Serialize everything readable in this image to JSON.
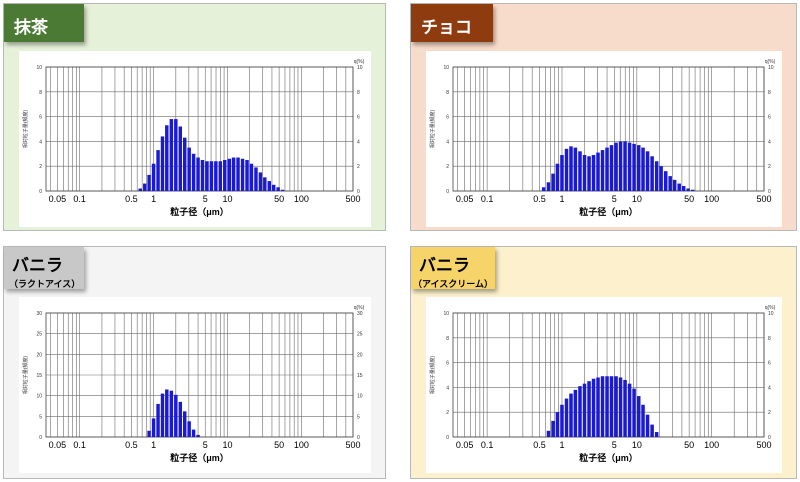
{
  "panels": [
    {
      "id": "matcha",
      "title": "抹茶",
      "subtitle": "",
      "bg": "#e6f1d9",
      "tab_color": "#4b7a34",
      "tab_text": "#ffffff"
    },
    {
      "id": "choco",
      "title": "チョコ",
      "subtitle": "",
      "bg": "#f8dccb",
      "tab_color": "#8e3b10",
      "tab_text": "#ffffff"
    },
    {
      "id": "vanilla-lacto",
      "title": "バニラ",
      "subtitle": "（ラクトアイス）",
      "bg": "#f4f4f4",
      "tab_color": "#c8c8c8",
      "tab_text": "#000000"
    },
    {
      "id": "vanilla-ice",
      "title": "バニラ",
      "subtitle": "（アイスクリーム）",
      "bg": "#fcf1cc",
      "tab_color": "#f7d469",
      "tab_text": "#000000"
    }
  ],
  "axis": {
    "x_ticks": [
      "0.05",
      "0.1",
      "0.5",
      "1",
      "5",
      "10",
      "50",
      "100",
      "500"
    ],
    "x_label": "粒子径（μm）",
    "y_label": "相対粒子量(頻度)",
    "y_label_right": "q(%)"
  },
  "bar_color": "#1a1ad2",
  "chart_data": [
    {
      "type": "bar",
      "title": "抹茶",
      "xlabel": "粒子径（μm）",
      "ylabel": "相対粒子量(頻度)",
      "x_scale": "log",
      "xlim": [
        0.035,
        500
      ],
      "ylim": [
        0,
        10
      ],
      "y_ticks": [
        0,
        2,
        4,
        6,
        8,
        10
      ],
      "grid": true,
      "x": [
        0.66,
        0.76,
        0.87,
        1.0,
        1.15,
        1.32,
        1.51,
        1.74,
        2.0,
        2.3,
        2.64,
        3.03,
        3.48,
        4.0,
        4.59,
        5.28,
        6.06,
        6.96,
        8.0,
        9.19,
        10.6,
        12.1,
        13.9,
        16.0,
        18.4,
        21.1,
        24.3,
        27.9,
        32.0,
        36.8,
        42.2,
        48.5,
        55.7
      ],
      "values": [
        0.2,
        0.6,
        1.3,
        2.2,
        3.3,
        4.4,
        5.3,
        5.8,
        5.8,
        5.2,
        4.3,
        3.5,
        3.0,
        2.7,
        2.5,
        2.4,
        2.4,
        2.4,
        2.4,
        2.5,
        2.6,
        2.7,
        2.7,
        2.6,
        2.5,
        2.2,
        1.9,
        1.5,
        1.1,
        0.8,
        0.5,
        0.3,
        0.1
      ]
    },
    {
      "type": "bar",
      "title": "チョコ",
      "xlabel": "粒子径（μm）",
      "ylabel": "相対粒子量(頻度)",
      "x_scale": "log",
      "xlim": [
        0.035,
        500
      ],
      "ylim": [
        0,
        10
      ],
      "y_ticks": [
        0,
        2,
        4,
        6,
        8,
        10
      ],
      "grid": true,
      "x": [
        0.57,
        0.66,
        0.76,
        0.87,
        1.0,
        1.15,
        1.32,
        1.51,
        1.74,
        2.0,
        2.3,
        2.64,
        3.03,
        3.48,
        4.0,
        4.59,
        5.28,
        6.06,
        6.96,
        8.0,
        9.19,
        10.6,
        12.1,
        13.9,
        16.0,
        18.4,
        21.1,
        24.3,
        27.9,
        32.0,
        36.8,
        42.2,
        48.5,
        55.7
      ],
      "values": [
        0.3,
        0.7,
        1.4,
        2.2,
        2.9,
        3.4,
        3.6,
        3.5,
        3.2,
        2.9,
        2.8,
        2.9,
        3.1,
        3.3,
        3.5,
        3.7,
        3.9,
        4.0,
        4.0,
        3.9,
        3.8,
        3.7,
        3.5,
        3.2,
        2.8,
        2.4,
        2.0,
        1.6,
        1.2,
        0.9,
        0.6,
        0.4,
        0.2,
        0.1
      ]
    },
    {
      "type": "bar",
      "title": "バニラ（ラクトアイス）",
      "xlabel": "粒子径（μm）",
      "ylabel": "相対粒子量(頻度)",
      "x_scale": "log",
      "xlim": [
        0.035,
        500
      ],
      "ylim": [
        0,
        30
      ],
      "y_ticks": [
        0,
        5,
        10,
        15,
        20,
        25,
        30
      ],
      "grid": true,
      "x": [
        0.87,
        1.0,
        1.15,
        1.32,
        1.51,
        1.74,
        2.0,
        2.3,
        2.64,
        3.03,
        3.48,
        4.0
      ],
      "values": [
        1.5,
        4.5,
        8.0,
        10.5,
        11.5,
        11.2,
        10.2,
        8.5,
        6.2,
        3.8,
        1.8,
        0.5
      ]
    },
    {
      "type": "bar",
      "title": "バニラ（アイスクリーム）",
      "xlabel": "粒子径（μm）",
      "ylabel": "相対粒子量(頻度)",
      "x_scale": "log",
      "xlim": [
        0.035,
        500
      ],
      "ylim": [
        0,
        10
      ],
      "y_ticks": [
        0,
        2,
        4,
        6,
        8,
        10
      ],
      "grid": true,
      "x": [
        0.66,
        0.76,
        0.87,
        1.0,
        1.15,
        1.32,
        1.51,
        1.74,
        2.0,
        2.3,
        2.64,
        3.03,
        3.48,
        4.0,
        4.59,
        5.28,
        6.06,
        6.96,
        8.0,
        9.19,
        10.6,
        12.1,
        13.9,
        16.0,
        18.4
      ],
      "values": [
        0.5,
        1.3,
        2.0,
        2.6,
        3.1,
        3.5,
        3.8,
        4.1,
        4.3,
        4.5,
        4.7,
        4.8,
        4.9,
        4.9,
        4.9,
        4.9,
        4.8,
        4.6,
        4.3,
        3.9,
        3.3,
        2.6,
        1.8,
        1.0,
        0.4
      ]
    }
  ]
}
